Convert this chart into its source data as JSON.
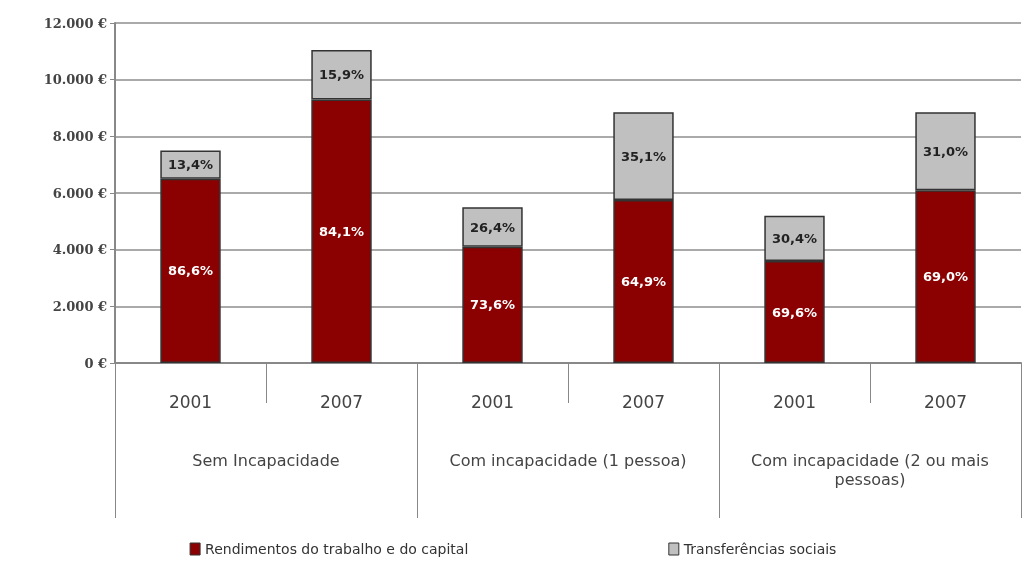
{
  "chart_data": {
    "type": "bar",
    "stacked": true,
    "categories": [
      "2001",
      "2007",
      "2001",
      "2007",
      "2001",
      "2007"
    ],
    "annotations": [
      "Sem Incapacidade",
      "Com incapacidade (1 pessoa)",
      "Com incapacidade (2 ou mais pessoas)",
      "86,6%",
      "13,4%",
      "84,1%",
      "15,9%",
      "73,6%",
      "26,4%",
      "64,9%",
      "35,1%",
      "69,6%",
      "30,4%",
      "69,0%",
      "31,0%"
    ],
    "series": [
      {
        "name": "Rendimentos do trabalho e do capital",
        "color": "#8b0000",
        "values": [
          6500,
          9300,
          4100,
          5750,
          3600,
          6100
        ]
      },
      {
        "name": "Transferências sociais",
        "color": "#c0c0c0",
        "values": [
          1000,
          1750,
          1400,
          3100,
          1600,
          2750
        ]
      }
    ],
    "ylim": [
      0,
      12000
    ],
    "yticks": [
      {
        "value": 0,
        "label": "0 €"
      },
      {
        "value": 2000,
        "label": "2.000 €"
      },
      {
        "value": 4000,
        "label": "4.000 €"
      },
      {
        "value": 6000,
        "label": "6.000 €"
      },
      {
        "value": 8000,
        "label": "8.000 €"
      },
      {
        "value": 10000,
        "label": "10.000 €"
      },
      {
        "value": 12000,
        "label": "12.000 €"
      }
    ],
    "grid": "y",
    "legend": "bottom"
  }
}
